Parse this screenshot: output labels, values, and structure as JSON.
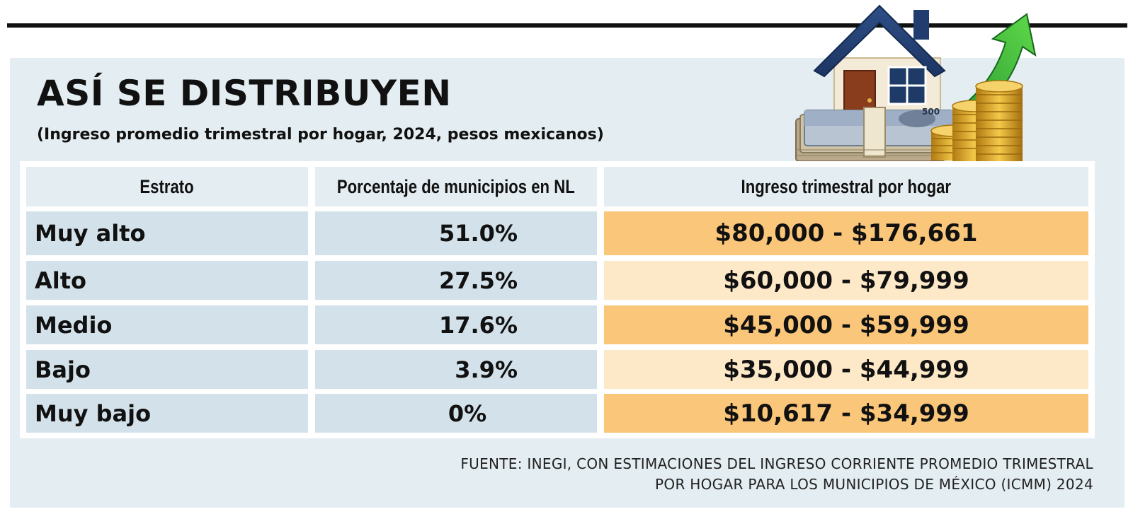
{
  "title": "ASÍ SE DISTRIBUYEN",
  "subtitle": "(Ingreso promedio trimestral por hogar, 2024, pesos mexicanos)",
  "colors": {
    "panel": "#e4edf1",
    "left_cells": "#d3e2ea",
    "income_dark": "#fac67a",
    "income_light": "#fde8c8",
    "text": "#111111"
  },
  "chart_data": {
    "type": "table",
    "columns": [
      "Estrato",
      "Porcentaje de municipios en NL",
      "Ingreso trimestral por hogar"
    ],
    "rows": [
      {
        "estrato": "Muy alto",
        "porcentaje": "51.0%",
        "ingreso": "$80,000 - $176,661"
      },
      {
        "estrato": "Alto",
        "porcentaje": "27.5%",
        "ingreso": "$60,000 - $79,999"
      },
      {
        "estrato": "Medio",
        "porcentaje": "17.6%",
        "ingreso": "$45,000 - $59,999"
      },
      {
        "estrato": "Bajo",
        "porcentaje": "3.9%",
        "ingreso": "$35,000 - $44,999"
      },
      {
        "estrato": "Muy bajo",
        "porcentaje": "0%",
        "ingreso": "$10,617 - $34,999"
      }
    ]
  },
  "illustration": {
    "icons": [
      "house-icon",
      "banknotes-icon",
      "coin-stacks-icon",
      "up-arrow-icon"
    ],
    "banknote_label": "500"
  },
  "source": {
    "line1": "FUENTE: INEGI, CON ESTIMACIONES DEL INGRESO CORRIENTE PROMEDIO TRIMESTRAL",
    "line2": "POR HOGAR PARA LOS MUNICIPIOS DE MÉXICO (ICMM) 2024"
  }
}
